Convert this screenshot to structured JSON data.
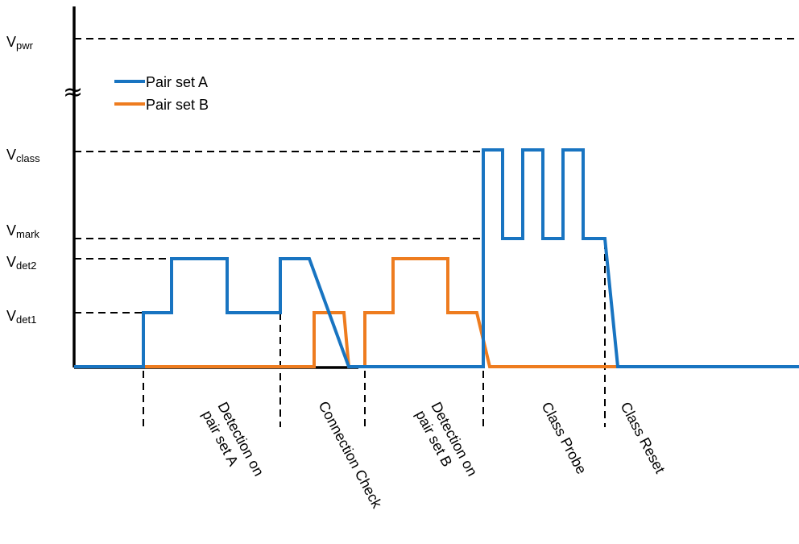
{
  "levels": {
    "vpwr": {
      "main": "V",
      "sub": "pwr"
    },
    "vclass": {
      "main": "V",
      "sub": "class"
    },
    "vmark": {
      "main": "V",
      "sub": "mark"
    },
    "vdet2": {
      "main": "V",
      "sub": "det2"
    },
    "vdet1": {
      "main": "V",
      "sub": "det1"
    }
  },
  "legend": [
    {
      "label": "Pair set A",
      "color": "#1874c1"
    },
    {
      "label": "Pair set B",
      "color": "#ee7c1f"
    }
  ],
  "phases": {
    "det_a": [
      "Detection on",
      "pair set A"
    ],
    "conn": [
      "Connection Check"
    ],
    "det_b": [
      "Detection on",
      "pair set B"
    ],
    "probe": [
      "Class Probe"
    ],
    "reset": [
      "Class Reset"
    ]
  },
  "axis_break_symbol": "≈",
  "colors": {
    "pair_a": "#1874c1",
    "pair_b": "#ee7c1f",
    "axis": "#000000"
  }
}
